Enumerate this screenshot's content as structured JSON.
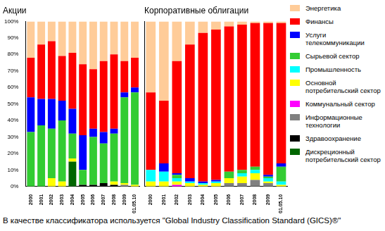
{
  "chart_data": [
    {
      "type": "bar",
      "title": "Акции",
      "stacked": true,
      "categories": [
        "2000",
        "2001",
        "2002",
        "2003",
        "2004",
        "2005",
        "2006",
        "2007",
        "2008",
        "2009",
        "01.05.10"
      ],
      "ylim": [
        0,
        100
      ],
      "yticks": [
        {
          "value": 0,
          "label": "0%"
        },
        {
          "value": 10,
          "label": "10%"
        },
        {
          "value": 20,
          "label": "20%"
        },
        {
          "value": 30,
          "label": "30%"
        },
        {
          "value": 40,
          "label": "40%"
        },
        {
          "value": 50,
          "label": "50%"
        },
        {
          "value": 60,
          "label": "60%"
        },
        {
          "value": 70,
          "label": "70%"
        },
        {
          "value": 80,
          "label": "80%"
        },
        {
          "value": 90,
          "label": "90%"
        },
        {
          "value": 100,
          "label": "100%"
        }
      ],
      "series": [
        {
          "name": "Энергетика",
          "color": "#FFCC99",
          "values": [
            22,
            14,
            12,
            21,
            19,
            26,
            29,
            24,
            20,
            24,
            22
          ]
        },
        {
          "name": "Финансы",
          "color": "#FF0000",
          "values": [
            24,
            33,
            35,
            27,
            34,
            43,
            36,
            43,
            45,
            19,
            18
          ]
        },
        {
          "name": "Услуги телекоммуникации",
          "color": "#0000FF",
          "values": [
            21,
            16,
            18,
            12,
            15,
            21,
            5,
            7,
            3,
            3,
            3
          ]
        },
        {
          "name": "Сырьевой сектор",
          "color": "#33CC33",
          "values": [
            33,
            37,
            30,
            37,
            15,
            9,
            29,
            24,
            29,
            52,
            56
          ]
        },
        {
          "name": "Промышленность",
          "color": "#00FFFF",
          "values": [
            0,
            0,
            0,
            0,
            0,
            0,
            0,
            0,
            0,
            0,
            0
          ]
        },
        {
          "name": "Основной потребительский сектор",
          "color": "#FFFF00",
          "values": [
            0,
            0,
            5,
            3,
            2,
            0,
            0,
            0,
            2,
            1,
            1
          ]
        },
        {
          "name": "Коммунальный сектор",
          "color": "#FF00FF",
          "values": [
            0,
            0,
            0,
            0,
            0,
            0,
            0,
            0,
            0,
            0,
            0
          ]
        },
        {
          "name": "Информационные технологии",
          "color": "#808080",
          "values": [
            0,
            0,
            0,
            0,
            0,
            0,
            0,
            0,
            0,
            1,
            0
          ]
        },
        {
          "name": "Здравоохранение",
          "color": "#000000",
          "values": [
            0,
            0,
            0,
            0,
            0,
            1,
            1,
            2,
            1,
            0,
            0
          ]
        },
        {
          "name": "Дискреционный потребительский сектор",
          "color": "#006600",
          "values": [
            0,
            0,
            0,
            0,
            15,
            0,
            0,
            0,
            0,
            0,
            0
          ]
        }
      ]
    },
    {
      "type": "bar",
      "title": "Корпоративные облигации",
      "stacked": true,
      "tick_labels": "x",
      "legend": "right",
      "categories": [
        "2000",
        "2001",
        "2002",
        "2003",
        "2004",
        "2005",
        "2006",
        "2007",
        "2008",
        "2009",
        "01.05.10"
      ],
      "ylim": [
        0,
        100
      ],
      "series": [
        {
          "name": "Энергетика",
          "color": "#FFCC99",
          "values": [
            43,
            48,
            24,
            14,
            7,
            5,
            3,
            2,
            1,
            1,
            1
          ]
        },
        {
          "name": "Финансы",
          "color": "#FF0000",
          "values": [
            47,
            38,
            68,
            81,
            90,
            91,
            88,
            88,
            87,
            92,
            85
          ]
        },
        {
          "name": "Услуги телекоммуникации",
          "color": "#0000FF",
          "values": [
            0,
            5,
            1,
            2,
            1,
            1,
            0,
            0,
            0,
            1,
            2
          ]
        },
        {
          "name": "Сырьевой сектор",
          "color": "#33CC33",
          "values": [
            0,
            0,
            2,
            0,
            0,
            0,
            4,
            2,
            2,
            1,
            9
          ]
        },
        {
          "name": "Промышленность",
          "color": "#00FFFF",
          "values": [
            7,
            6,
            2,
            1,
            1,
            1,
            0,
            2,
            2,
            2,
            2
          ]
        },
        {
          "name": "Основной потребительский сектор",
          "color": "#FFFF00",
          "values": [
            3,
            3,
            2,
            2,
            1,
            2,
            3,
            4,
            4,
            1,
            1
          ]
        },
        {
          "name": "Коммунальный сектор",
          "color": "#FF00FF",
          "values": [
            0,
            0,
            1,
            0,
            0,
            0,
            0,
            0,
            0,
            0,
            0
          ]
        },
        {
          "name": "Информационные технологии",
          "color": "#808080",
          "values": [
            0,
            0,
            0,
            0,
            0,
            0,
            2,
            2,
            4,
            2,
            0
          ]
        },
        {
          "name": "Здравоохранение",
          "color": "#000000",
          "values": [
            0,
            0,
            0,
            0,
            0,
            0,
            0,
            0,
            0,
            0,
            0
          ]
        },
        {
          "name": "Дискреционный потребительский сектор",
          "color": "#006600",
          "values": [
            0,
            0,
            0,
            0,
            0,
            0,
            0,
            0,
            0,
            0,
            0
          ]
        }
      ]
    }
  ],
  "footnote": "В качестве классификатора используется \"Global Industry Classification Standard (GICS)®\""
}
